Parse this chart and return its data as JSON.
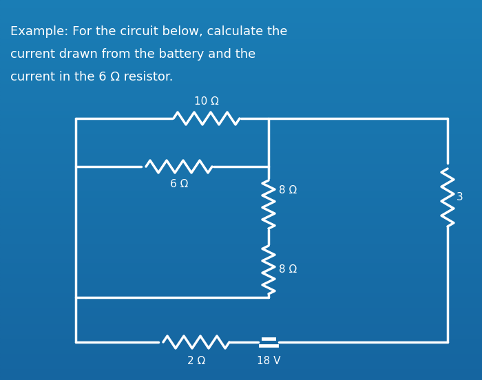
{
  "title_line1": "Example: For the circuit below, calculate the",
  "title_line2": "current drawn from the battery and the",
  "title_line3": "current in the 6 Ω resistor.",
  "bg_color_top": "#1a5276",
  "bg_color_bottom": "#1a6b8a",
  "wire_color": "#ffffff",
  "wire_lw": 2.5,
  "labels": {
    "10ohm": "10 Ω",
    "8ohm_top": "8 Ω",
    "8ohm_bot": "8 Ω",
    "6ohm": "6 Ω",
    "2ohm": "2 Ω",
    "18v": "18 V",
    "3ohm": "3"
  },
  "label_color": "#ffffff",
  "label_fontsize": 11
}
